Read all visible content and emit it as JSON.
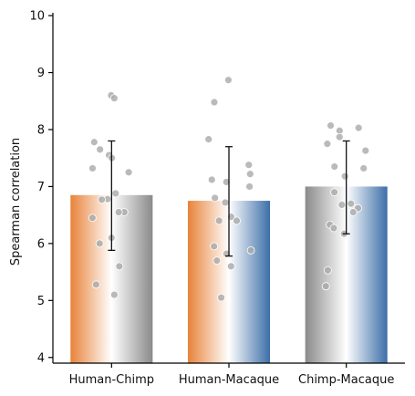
{
  "chart_data": {
    "type": "bar",
    "title": "",
    "xlabel": "",
    "ylabel": "Spearman correlation",
    "ylim": [
      3.9,
      10.05
    ],
    "yticks": [
      4,
      5,
      6,
      7,
      8,
      9,
      10
    ],
    "grid": false,
    "categories": [
      "Human-Chimp",
      "Human-Macaque",
      "Chimp-Macaque"
    ],
    "values": [
      6.85,
      6.75,
      7.0
    ],
    "error": [
      [
        5.88,
        7.8
      ],
      [
        5.78,
        7.7
      ],
      [
        6.17,
        7.8
      ]
    ],
    "gradients": [
      [
        "#e8833a",
        "#ffffff",
        "#8a8a8a"
      ],
      [
        "#e8833a",
        "#ffffff",
        "#3c6ea8"
      ],
      [
        "#8a8a8a",
        "#ffffff",
        "#3c6ea8"
      ]
    ],
    "point_color": "#a9a9a9",
    "points": [
      [
        8.6,
        8.55,
        7.78,
        7.65,
        7.55,
        7.5,
        7.32,
        7.25,
        6.88,
        6.78,
        6.77,
        6.55,
        6.55,
        6.45,
        6.1,
        6.0,
        5.6,
        5.28,
        5.1
      ],
      [
        8.87,
        8.48,
        7.83,
        7.38,
        7.22,
        7.12,
        7.08,
        7.0,
        6.8,
        6.72,
        6.47,
        6.4,
        6.4,
        5.95,
        5.88,
        5.82,
        5.7,
        5.6,
        5.05
      ],
      [
        8.07,
        8.03,
        7.98,
        7.87,
        7.75,
        7.63,
        7.35,
        7.32,
        7.18,
        6.9,
        6.7,
        6.68,
        6.62,
        6.55,
        6.33,
        6.27,
        6.17,
        5.53,
        5.25
      ]
    ]
  }
}
